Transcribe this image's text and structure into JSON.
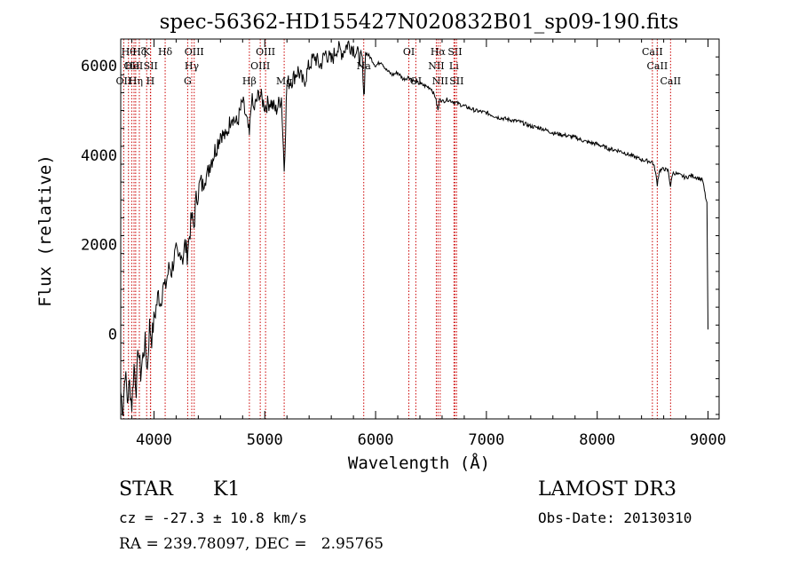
{
  "chart_data": {
    "type": "line",
    "title": "spec-56362-HD155427N020832B01_sp09-190.fits",
    "xlabel": "Wavelength (Å)",
    "ylabel": "Flux (relative)",
    "xlim": [
      3700,
      9100
    ],
    "ylim": [
      -1900,
      6600
    ],
    "xticks": [
      4000,
      5000,
      6000,
      7000,
      8000,
      9000
    ],
    "yticks": [
      0,
      2000,
      4000,
      6000
    ],
    "grid": false,
    "line_color": "#000000",
    "marker_color": "#cc0000",
    "series": [
      {
        "name": "flux",
        "x": [
          3700,
          3720,
          3740,
          3760,
          3780,
          3800,
          3820,
          3840,
          3860,
          3880,
          3900,
          3920,
          3940,
          3960,
          3980,
          4000,
          4020,
          4040,
          4060,
          4080,
          4100,
          4120,
          4140,
          4160,
          4180,
          4200,
          4220,
          4240,
          4260,
          4280,
          4300,
          4320,
          4340,
          4360,
          4380,
          4400,
          4420,
          4440,
          4460,
          4480,
          4500,
          4550,
          4600,
          4650,
          4700,
          4750,
          4800,
          4850,
          4861,
          4880,
          4900,
          4950,
          5000,
          5050,
          5100,
          5150,
          5175,
          5200,
          5250,
          5300,
          5350,
          5400,
          5450,
          5500,
          5550,
          5600,
          5650,
          5700,
          5750,
          5800,
          5850,
          5880,
          5893,
          5910,
          5950,
          6000,
          6050,
          6100,
          6150,
          6200,
          6250,
          6300,
          6350,
          6400,
          6450,
          6500,
          6540,
          6563,
          6580,
          6600,
          6650,
          6700,
          6750,
          6800,
          6900,
          7000,
          7100,
          7200,
          7300,
          7400,
          7500,
          7600,
          7700,
          7800,
          7900,
          8000,
          8100,
          8200,
          8300,
          8400,
          8498,
          8520,
          8542,
          8560,
          8600,
          8640,
          8662,
          8680,
          8700,
          8750,
          8800,
          8850,
          8900,
          8950,
          8990,
          9000
        ],
        "values": [
          -1300,
          -1700,
          -800,
          -1500,
          -1100,
          -1600,
          -700,
          -1200,
          -300,
          -900,
          -500,
          -200,
          -800,
          200,
          -100,
          300,
          600,
          900,
          700,
          1100,
          1000,
          1300,
          1500,
          1400,
          1700,
          1800,
          1600,
          1900,
          1700,
          2000,
          1800,
          2200,
          2600,
          2400,
          3000,
          3200,
          3400,
          3300,
          3600,
          3500,
          3800,
          4100,
          4500,
          4400,
          4900,
          4700,
          5200,
          4600,
          4400,
          5300,
          5000,
          5400,
          5100,
          5200,
          5000,
          5300,
          3700,
          5600,
          5700,
          5900,
          5600,
          6000,
          6200,
          6000,
          6300,
          6100,
          6400,
          6300,
          6500,
          6400,
          6200,
          6100,
          5200,
          6300,
          6200,
          6000,
          6100,
          5900,
          5800,
          5850,
          5700,
          5750,
          5650,
          5600,
          5550,
          5500,
          5300,
          5000,
          5300,
          5200,
          5250,
          5200,
          5150,
          5100,
          5000,
          4950,
          4850,
          4800,
          4750,
          4650,
          4600,
          4500,
          4450,
          4400,
          4300,
          4250,
          4150,
          4100,
          4000,
          3900,
          3850,
          3700,
          3350,
          3650,
          3700,
          3650,
          3300,
          3600,
          3600,
          3550,
          3500,
          3550,
          3500,
          3450,
          2900,
          100
        ]
      }
    ],
    "lines": [
      {
        "wave": 3770,
        "rank": 0,
        "label": "Hθ"
      },
      {
        "wave": 3799,
        "rank": 1,
        "label": "OII"
      },
      {
        "wave": 3727,
        "rank": 2,
        "label": "OII"
      },
      {
        "wave": 3820,
        "rank": 1,
        "label": "HeI"
      },
      {
        "wave": 3835,
        "rank": 2,
        "label": "Hη"
      },
      {
        "wave": 3868,
        "rank": 0,
        "label": "Hζ"
      },
      {
        "wave": 3934,
        "rank": 0,
        "label": "K"
      },
      {
        "wave": 3968,
        "rank": 2,
        "label": "H"
      },
      {
        "wave": 3970,
        "rank": 1,
        "label": "SII"
      },
      {
        "wave": 4101,
        "rank": 0,
        "label": "Hδ"
      },
      {
        "wave": 4304,
        "rank": 2,
        "label": "G"
      },
      {
        "wave": 4341,
        "rank": 1,
        "label": "Hγ"
      },
      {
        "wave": 4363,
        "rank": 0,
        "label": "OIII"
      },
      {
        "wave": 4861,
        "rank": 2,
        "label": "Hβ"
      },
      {
        "wave": 4959,
        "rank": 1,
        "label": "OIII"
      },
      {
        "wave": 5007,
        "rank": 0,
        "label": "OIII"
      },
      {
        "wave": 5175,
        "rank": 2,
        "label": "Mg"
      },
      {
        "wave": 5893,
        "rank": 1,
        "label": "Na"
      },
      {
        "wave": 6300,
        "rank": 0,
        "label": "OI"
      },
      {
        "wave": 6363,
        "rank": 2,
        "label": "OI"
      },
      {
        "wave": 6548,
        "rank": 1,
        "label": "NII"
      },
      {
        "wave": 6563,
        "rank": 0,
        "label": "Hα"
      },
      {
        "wave": 6583,
        "rank": 2,
        "label": "NII"
      },
      {
        "wave": 6707,
        "rank": 1,
        "label": "Li"
      },
      {
        "wave": 6716,
        "rank": 0,
        "label": "SII"
      },
      {
        "wave": 6731,
        "rank": 2,
        "label": "SII"
      },
      {
        "wave": 8498,
        "rank": 0,
        "label": "CaII"
      },
      {
        "wave": 8542,
        "rank": 1,
        "label": "CaII"
      },
      {
        "wave": 8662,
        "rank": 2,
        "label": "CaII"
      }
    ]
  },
  "info": {
    "class_label": "STAR",
    "subclass": "K1",
    "survey": "LAMOST DR3",
    "cz": "cz = -27.3 ± 10.8 km/s",
    "obs_date": "Obs-Date: 20130310",
    "coords": "RA = 239.78097, DEC =   2.95765"
  }
}
